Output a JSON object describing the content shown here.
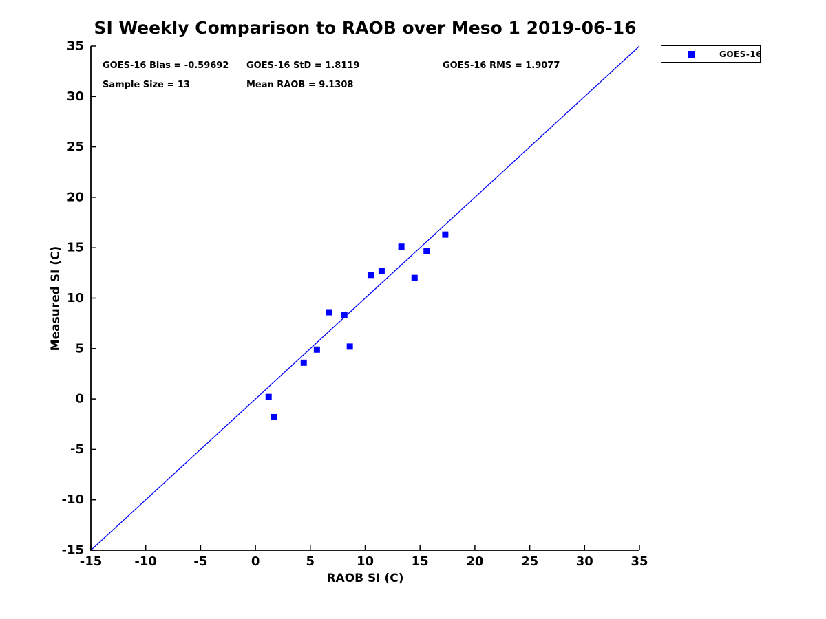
{
  "title": "SI Weekly Comparison to RAOB over Meso 1 2019-06-16",
  "stats": {
    "bias": "GOES-16 Bias = -0.59692",
    "std": "GOES-16 StD = 1.8119",
    "rms": "GOES-16 RMS = 1.9077",
    "sample_size": "Sample Size = 13",
    "mean_raob": "Mean RAOB = 9.1308"
  },
  "legend": {
    "position": "outside-top-right",
    "items": [
      {
        "label": "GOES-16",
        "marker": "square",
        "marker_color": "#0000ff"
      }
    ]
  },
  "colors": {
    "marker": "#0000ff",
    "reference_line": "#0000ff",
    "axis": "#000000",
    "background": "#ffffff"
  },
  "chart_data": {
    "type": "scatter",
    "title": "SI Weekly Comparison to RAOB over Meso 1 2019-06-16",
    "xlabel": "RAOB SI (C)",
    "ylabel": "Measured SI (C)",
    "xlim": [
      -15,
      35
    ],
    "ylim": [
      -15,
      35
    ],
    "xticks": [
      -15,
      -10,
      -5,
      0,
      5,
      10,
      15,
      20,
      25,
      30,
      35
    ],
    "yticks": [
      -15,
      -10,
      -5,
      0,
      5,
      10,
      15,
      20,
      25,
      30,
      35
    ],
    "grid": false,
    "legend_position": "outside-top-right",
    "series": [
      {
        "name": "GOES-16",
        "marker": "square",
        "color": "#0000ff",
        "points": [
          [
            1.2,
            0.2
          ],
          [
            1.7,
            -1.8
          ],
          [
            4.4,
            3.6
          ],
          [
            5.6,
            4.9
          ],
          [
            6.7,
            8.6
          ],
          [
            8.1,
            8.3
          ],
          [
            8.6,
            5.2
          ],
          [
            10.5,
            12.3
          ],
          [
            11.5,
            12.7
          ],
          [
            13.3,
            15.1
          ],
          [
            14.5,
            12.0
          ],
          [
            15.6,
            14.7
          ],
          [
            17.3,
            16.3
          ]
        ]
      }
    ],
    "reference_line": {
      "label": "identity-line",
      "from": [
        -15,
        -15
      ],
      "to": [
        35,
        35
      ],
      "color": "#0000ff"
    },
    "annotations": [
      "GOES-16 Bias = -0.59692",
      "GOES-16 StD = 1.8119",
      "GOES-16 RMS = 1.9077",
      "Sample Size = 13",
      "Mean RAOB = 9.1308"
    ]
  }
}
